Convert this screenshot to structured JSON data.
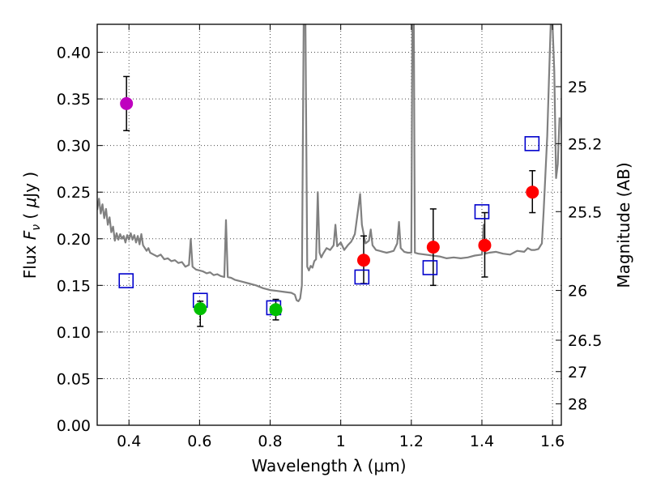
{
  "chart_data": {
    "type": "scatter",
    "xlabel": "Wavelength  λ (μm)",
    "ylabel": "Flux  F_ν  ( μJy )",
    "ylabel_parts": {
      "pre": "Flux  ",
      "sym": "F",
      "sub": "ν",
      "mid": "  ( ",
      "mu": "μ",
      "post": "Jy )"
    },
    "y2label": "Magnitude (AB)",
    "xlim": [
      0.31,
      1.625
    ],
    "ylim": [
      0.0,
      0.43
    ],
    "grid": true,
    "x_ticks": [
      {
        "value": 0.4,
        "label": "0.4"
      },
      {
        "value": 0.6,
        "label": "0.6"
      },
      {
        "value": 0.8,
        "label": "0.8"
      },
      {
        "value": 1.0,
        "label": "1"
      },
      {
        "value": 1.2,
        "label": "1.2"
      },
      {
        "value": 1.4,
        "label": "1.4"
      },
      {
        "value": 1.6,
        "label": "1.6"
      }
    ],
    "y_ticks": [
      {
        "value": 0.0,
        "label": "0.00"
      },
      {
        "value": 0.05,
        "label": "0.05"
      },
      {
        "value": 0.1,
        "label": "0.10"
      },
      {
        "value": 0.15,
        "label": "0.15"
      },
      {
        "value": 0.2,
        "label": "0.20"
      },
      {
        "value": 0.25,
        "label": "0.25"
      },
      {
        "value": 0.3,
        "label": "0.30"
      },
      {
        "value": 0.35,
        "label": "0.35"
      },
      {
        "value": 0.4,
        "label": "0.40"
      }
    ],
    "y2_ticks": [
      {
        "label": "25",
        "value": 25.0
      },
      {
        "label": "25.2",
        "value": 25.2
      },
      {
        "label": "25.5",
        "value": 25.5
      },
      {
        "label": "26",
        "value": 26.0
      },
      {
        "label": "26.5",
        "value": 26.5
      },
      {
        "label": "27",
        "value": 27.0
      },
      {
        "label": "28",
        "value": 28.0
      }
    ],
    "zeropoint_uJy": 3631000000,
    "observed": [
      {
        "x": 0.393,
        "y": 0.345,
        "err_lo": 0.029,
        "err_hi": 0.029,
        "color": "#bf00bf"
      },
      {
        "x": 0.602,
        "y": 0.125,
        "err_lo": 0.019,
        "err_hi": 0.008,
        "color": "#00bf00"
      },
      {
        "x": 0.816,
        "y": 0.124,
        "err_lo": 0.011,
        "err_hi": 0.011,
        "color": "#00bf00"
      },
      {
        "x": 1.065,
        "y": 0.177,
        "err_lo": 0.025,
        "err_hi": 0.026,
        "color": "#ff0000"
      },
      {
        "x": 1.262,
        "y": 0.191,
        "err_lo": 0.041,
        "err_hi": 0.041,
        "color": "#ff0000"
      },
      {
        "x": 1.408,
        "y": 0.193,
        "err_lo": 0.034,
        "err_hi": 0.035,
        "color": "#ff0000"
      },
      {
        "x": 1.543,
        "y": 0.25,
        "err_lo": 0.022,
        "err_hi": 0.023,
        "color": "#ff0000"
      }
    ],
    "model_photometry": [
      {
        "x": 0.392,
        "y": 0.155
      },
      {
        "x": 0.602,
        "y": 0.134
      },
      {
        "x": 0.81,
        "y": 0.126
      },
      {
        "x": 1.06,
        "y": 0.159
      },
      {
        "x": 1.253,
        "y": 0.169
      },
      {
        "x": 1.4,
        "y": 0.229
      },
      {
        "x": 1.542,
        "y": 0.302
      }
    ],
    "model_spectrum": [
      [
        0.31,
        0.231
      ],
      [
        0.315,
        0.243
      ],
      [
        0.32,
        0.227
      ],
      [
        0.325,
        0.237
      ],
      [
        0.33,
        0.222
      ],
      [
        0.335,
        0.232
      ],
      [
        0.34,
        0.215
      ],
      [
        0.345,
        0.223
      ],
      [
        0.35,
        0.207
      ],
      [
        0.355,
        0.213
      ],
      [
        0.36,
        0.198
      ],
      [
        0.365,
        0.206
      ],
      [
        0.37,
        0.199
      ],
      [
        0.375,
        0.205
      ],
      [
        0.38,
        0.2
      ],
      [
        0.385,
        0.203
      ],
      [
        0.39,
        0.196
      ],
      [
        0.395,
        0.204
      ],
      [
        0.4,
        0.199
      ],
      [
        0.405,
        0.206
      ],
      [
        0.41,
        0.199
      ],
      [
        0.415,
        0.204
      ],
      [
        0.42,
        0.196
      ],
      [
        0.425,
        0.203
      ],
      [
        0.43,
        0.194
      ],
      [
        0.435,
        0.205
      ],
      [
        0.44,
        0.193
      ],
      [
        0.45,
        0.187
      ],
      [
        0.455,
        0.19
      ],
      [
        0.46,
        0.185
      ],
      [
        0.47,
        0.183
      ],
      [
        0.48,
        0.181
      ],
      [
        0.49,
        0.183
      ],
      [
        0.5,
        0.178
      ],
      [
        0.51,
        0.179
      ],
      [
        0.52,
        0.176
      ],
      [
        0.53,
        0.177
      ],
      [
        0.54,
        0.174
      ],
      [
        0.55,
        0.175
      ],
      [
        0.56,
        0.17
      ],
      [
        0.57,
        0.172
      ],
      [
        0.575,
        0.2
      ],
      [
        0.58,
        0.17
      ],
      [
        0.59,
        0.167
      ],
      [
        0.6,
        0.166
      ],
      [
        0.61,
        0.165
      ],
      [
        0.62,
        0.163
      ],
      [
        0.63,
        0.164
      ],
      [
        0.64,
        0.161
      ],
      [
        0.65,
        0.162
      ],
      [
        0.66,
        0.16
      ],
      [
        0.67,
        0.159
      ],
      [
        0.675,
        0.22
      ],
      [
        0.68,
        0.159
      ],
      [
        0.69,
        0.158
      ],
      [
        0.7,
        0.156
      ],
      [
        0.72,
        0.154
      ],
      [
        0.74,
        0.152
      ],
      [
        0.76,
        0.15
      ],
      [
        0.78,
        0.147
      ],
      [
        0.8,
        0.145
      ],
      [
        0.82,
        0.144
      ],
      [
        0.84,
        0.143
      ],
      [
        0.86,
        0.142
      ],
      [
        0.87,
        0.14
      ],
      [
        0.875,
        0.134
      ],
      [
        0.88,
        0.133
      ],
      [
        0.885,
        0.136
      ],
      [
        0.89,
        0.15
      ],
      [
        0.895,
        0.43
      ],
      [
        0.9,
        0.43
      ],
      [
        0.905,
        0.17
      ],
      [
        0.91,
        0.166
      ],
      [
        0.915,
        0.171
      ],
      [
        0.92,
        0.169
      ],
      [
        0.925,
        0.176
      ],
      [
        0.93,
        0.178
      ],
      [
        0.935,
        0.25
      ],
      [
        0.94,
        0.185
      ],
      [
        0.945,
        0.18
      ],
      [
        0.95,
        0.184
      ],
      [
        0.96,
        0.19
      ],
      [
        0.97,
        0.188
      ],
      [
        0.98,
        0.193
      ],
      [
        0.985,
        0.215
      ],
      [
        0.99,
        0.192
      ],
      [
        1.0,
        0.196
      ],
      [
        1.01,
        0.188
      ],
      [
        1.02,
        0.193
      ],
      [
        1.03,
        0.197
      ],
      [
        1.04,
        0.205
      ],
      [
        1.05,
        0.233
      ],
      [
        1.055,
        0.248
      ],
      [
        1.06,
        0.215
      ],
      [
        1.07,
        0.195
      ],
      [
        1.08,
        0.198
      ],
      [
        1.085,
        0.21
      ],
      [
        1.09,
        0.193
      ],
      [
        1.1,
        0.188
      ],
      [
        1.11,
        0.187
      ],
      [
        1.12,
        0.186
      ],
      [
        1.13,
        0.185
      ],
      [
        1.14,
        0.186
      ],
      [
        1.15,
        0.187
      ],
      [
        1.16,
        0.195
      ],
      [
        1.165,
        0.218
      ],
      [
        1.17,
        0.19
      ],
      [
        1.18,
        0.186
      ],
      [
        1.19,
        0.185
      ],
      [
        1.2,
        0.185
      ],
      [
        1.203,
        0.43
      ],
      [
        1.207,
        0.43
      ],
      [
        1.21,
        0.185
      ],
      [
        1.22,
        0.184
      ],
      [
        1.24,
        0.183
      ],
      [
        1.26,
        0.182
      ],
      [
        1.28,
        0.181
      ],
      [
        1.3,
        0.179
      ],
      [
        1.32,
        0.18
      ],
      [
        1.34,
        0.179
      ],
      [
        1.36,
        0.18
      ],
      [
        1.38,
        0.182
      ],
      [
        1.4,
        0.183
      ],
      [
        1.405,
        0.215
      ],
      [
        1.41,
        0.184
      ],
      [
        1.42,
        0.185
      ],
      [
        1.44,
        0.186
      ],
      [
        1.46,
        0.184
      ],
      [
        1.48,
        0.183
      ],
      [
        1.5,
        0.187
      ],
      [
        1.52,
        0.186
      ],
      [
        1.53,
        0.19
      ],
      [
        1.54,
        0.188
      ],
      [
        1.55,
        0.188
      ],
      [
        1.56,
        0.189
      ],
      [
        1.57,
        0.195
      ],
      [
        1.575,
        0.23
      ],
      [
        1.58,
        0.27
      ],
      [
        1.585,
        0.31
      ],
      [
        1.59,
        0.37
      ],
      [
        1.595,
        0.43
      ],
      [
        1.6,
        0.43
      ],
      [
        1.605,
        0.38
      ],
      [
        1.61,
        0.265
      ],
      [
        1.615,
        0.28
      ],
      [
        1.62,
        0.33
      ]
    ],
    "colors": {
      "model_line": "#808080",
      "model_marker": "#0000cc",
      "errorbar": "#000000"
    }
  }
}
